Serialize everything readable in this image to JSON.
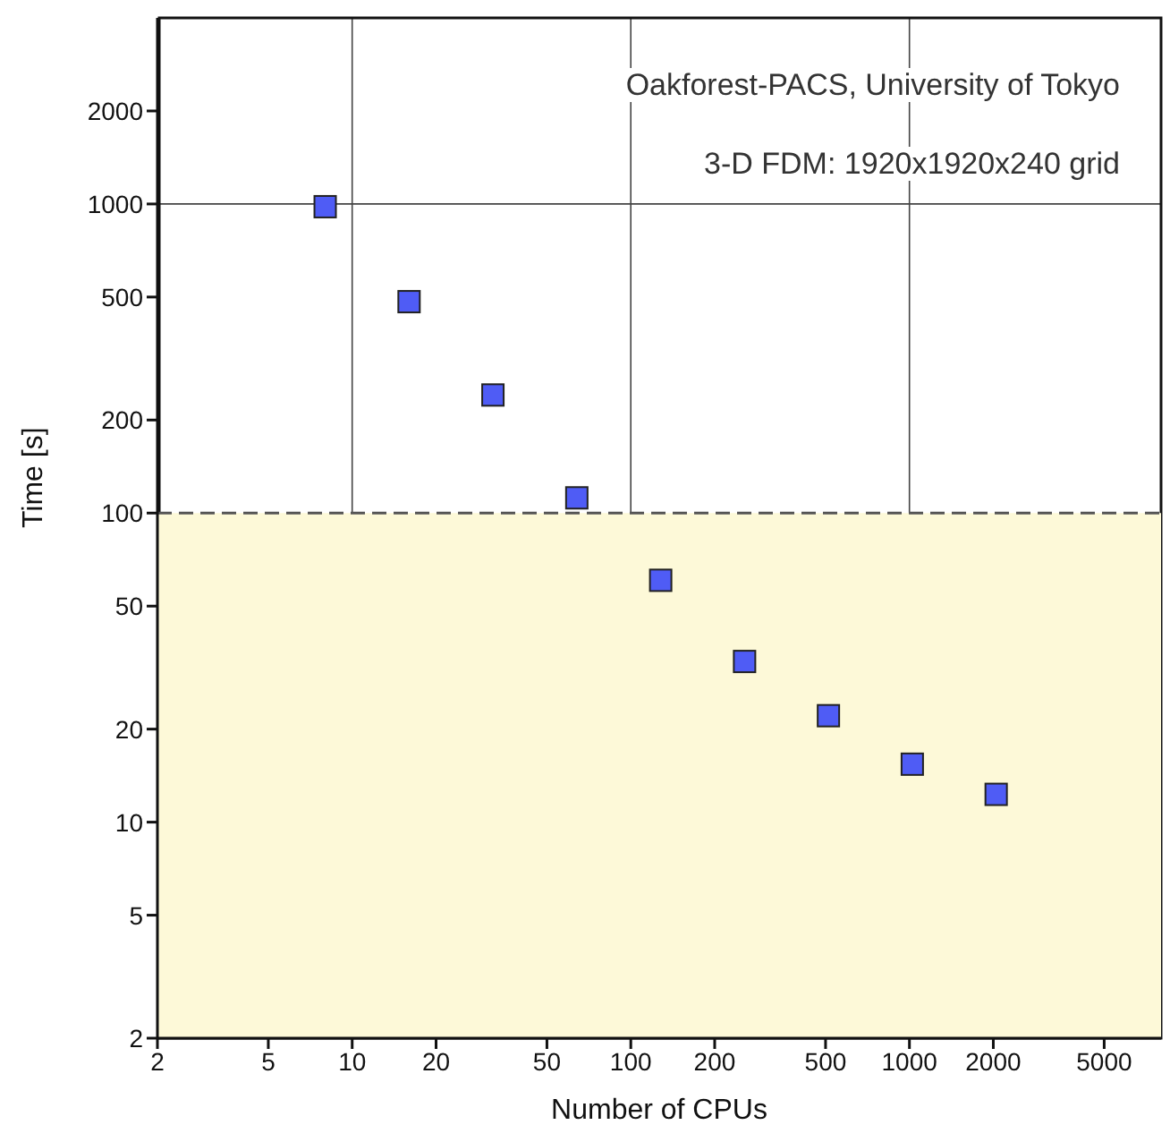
{
  "chart_data": {
    "type": "scatter",
    "xlabel": "Number of CPUs",
    "ylabel": "Time [s]",
    "annotations": [
      "Oakforest-PACS, University of Tokyo",
      "3-D FDM: 1920x1920x240 grid"
    ],
    "x": [
      8,
      16,
      32,
      64,
      128,
      256,
      512,
      1024,
      2048
    ],
    "series": [
      {
        "color": "#4f5cf5",
        "values": [
          980,
          483,
          241,
          112,
          60.6,
          33.1,
          22.1,
          15.4,
          12.3
        ]
      }
    ],
    "marker": "square",
    "log": "xy",
    "grid": true,
    "xlim": [
      2,
      8000
    ],
    "xticks": [
      2,
      5,
      10,
      20,
      50,
      100,
      200,
      500,
      1000,
      2000,
      5000
    ],
    "ylim": [
      2,
      4000
    ],
    "yticks": [
      2,
      5,
      10,
      20,
      50,
      100,
      200,
      500,
      1000,
      2000
    ],
    "bands": [
      {
        "axis": "y",
        "from": 2,
        "to": 100,
        "color": "#fdf9d8"
      }
    ],
    "ref_lines": [
      {
        "axis": "y",
        "value": 100,
        "color": "#555555",
        "line_style": "dashed"
      }
    ]
  }
}
